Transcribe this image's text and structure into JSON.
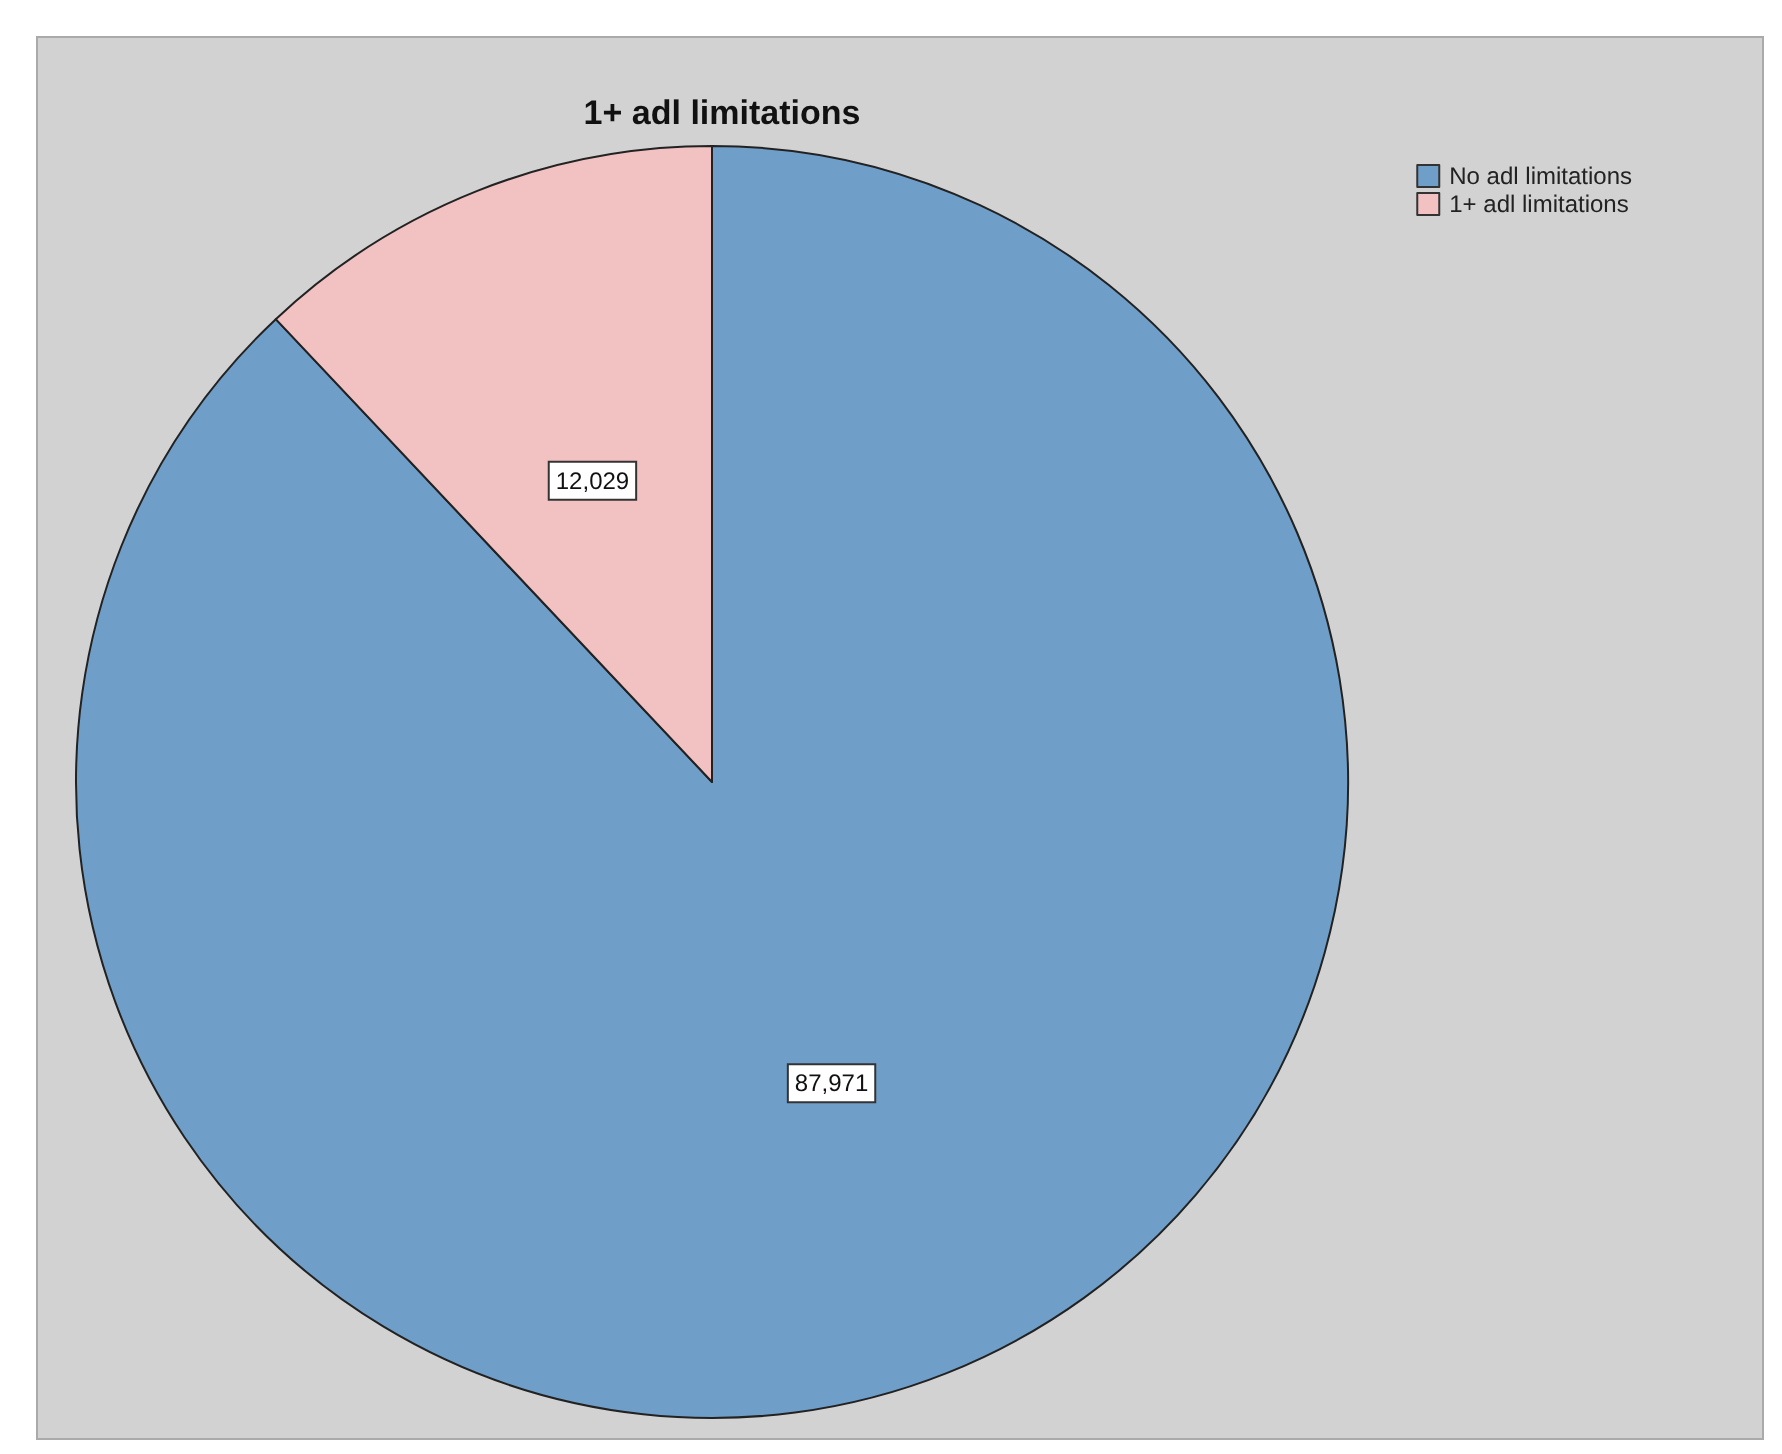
{
  "chart_data": {
    "type": "pie",
    "title": "1+ adl limitations",
    "categories": [
      "No adl limitations",
      "1+ adl limitations"
    ],
    "values": [
      87971,
      12029
    ],
    "value_labels": [
      "87,971",
      "12,029"
    ],
    "colors": [
      "#6f9fc9",
      "#f2c1c1"
    ],
    "legend": "top right"
  }
}
